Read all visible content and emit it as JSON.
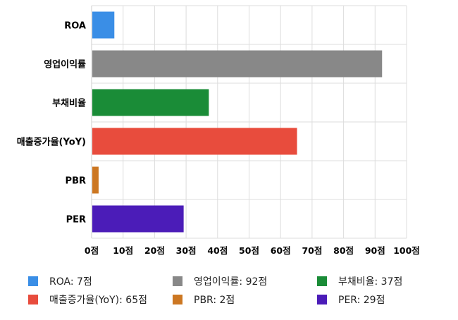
{
  "chart_data": {
    "type": "bar",
    "orientation": "horizontal",
    "categories": [
      "ROA",
      "영업이익률",
      "부채비율",
      "매출증가율(YoY)",
      "PBR",
      "PER"
    ],
    "values": [
      7,
      92,
      37,
      65,
      2,
      29
    ],
    "colors": [
      "#3a8ee6",
      "#888888",
      "#1a8c37",
      "#e84c3d",
      "#cc7722",
      "#4b1cb8"
    ],
    "xlim": [
      0,
      100
    ],
    "x_ticks": [
      "0점",
      "10점",
      "20점",
      "30점",
      "40점",
      "50점",
      "60점",
      "70점",
      "80점",
      "90점",
      "100점"
    ],
    "grid": true,
    "legend_position": "bottom",
    "legend": [
      {
        "label": "ROA: 7점",
        "color": "#3a8ee6"
      },
      {
        "label": "영업이익률: 92점",
        "color": "#888888"
      },
      {
        "label": "부채비율: 37점",
        "color": "#1a8c37"
      },
      {
        "label": "매출증가율(YoY): 65점",
        "color": "#e84c3d"
      },
      {
        "label": "PBR: 2점",
        "color": "#cc7722"
      },
      {
        "label": "PER: 29점",
        "color": "#4b1cb8"
      }
    ]
  }
}
